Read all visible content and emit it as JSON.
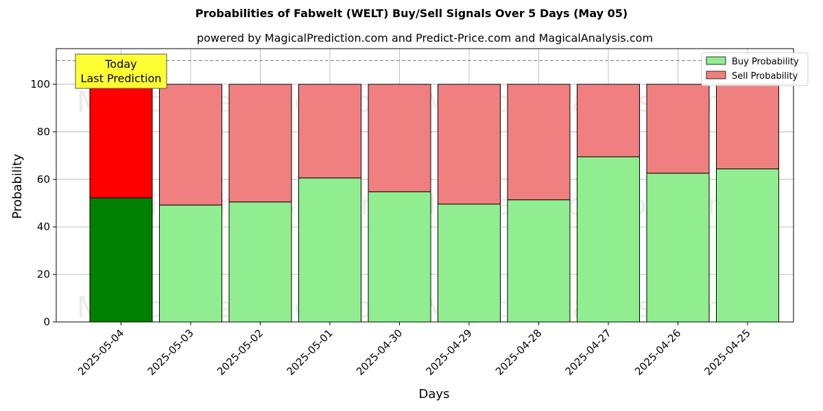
{
  "chart_data": {
    "type": "bar",
    "title": "Probabilities of Fabwelt (WELT) Buy/Sell Signals Over 5 Days (May 05)",
    "subtitle": "powered by MagicalPrediction.com and Predict-Price.com and MagicalAnalysis.com",
    "xlabel": "Days",
    "ylabel": "Probability",
    "ylim": [
      0,
      115
    ],
    "yticks": [
      0,
      20,
      40,
      60,
      80,
      100
    ],
    "reference_line": 110,
    "grid": true,
    "legend_position": "top-right",
    "categories": [
      "2025-05-04",
      "2025-05-03",
      "2025-05-02",
      "2025-05-01",
      "2025-04-30",
      "2025-04-29",
      "2025-04-28",
      "2025-04-27",
      "2025-04-26",
      "2025-04-25"
    ],
    "stacked": true,
    "series": [
      {
        "name": "Buy Probability",
        "color": "#90ee90",
        "highlight_color": "#008000",
        "values": [
          52.2,
          49.2,
          50.5,
          60.6,
          54.8,
          49.6,
          51.4,
          69.5,
          62.6,
          64.4
        ]
      },
      {
        "name": "Sell Probability",
        "color": "#f08080",
        "highlight_color": "#ff0000",
        "values": [
          47.8,
          50.8,
          49.5,
          39.4,
          45.2,
          50.4,
          48.6,
          30.5,
          37.4,
          35.6
        ]
      }
    ],
    "annotation": {
      "line1": "Today",
      "line2": "Last Prediction",
      "background": "#ffff33"
    },
    "watermarks": [
      "MagicalAnalysis.com",
      "MagicalPrediction.com"
    ]
  }
}
